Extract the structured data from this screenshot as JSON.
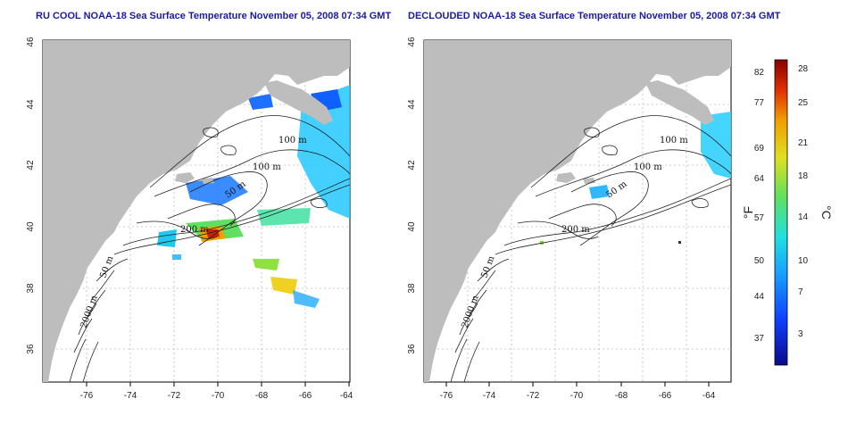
{
  "panels": [
    {
      "title": "RU COOL NOAA-18 Sea Surface Temperature November 05, 2008 07:34 GMT",
      "xticks": [
        "-76",
        "-74",
        "-72",
        "-70",
        "-68",
        "-66",
        "-64"
      ],
      "yticks": [
        "46",
        "44",
        "42",
        "40",
        "38",
        "36"
      ],
      "contours": [
        "100 m",
        "100 m",
        "50 m",
        "200 m",
        "50 m",
        "2000 m"
      ]
    },
    {
      "title": "DECLOUDED NOAA-18 Sea Surface Temperature November 05, 2008 07:34 GMT",
      "xticks": [
        "-76",
        "-74",
        "-72",
        "-70",
        "-68",
        "-66",
        "-64"
      ],
      "yticks": [
        "46",
        "44",
        "42",
        "40",
        "38",
        "36"
      ],
      "contours": [
        "100 m",
        "100 m",
        "50 m",
        "200 m",
        "50 m",
        "2000 m"
      ]
    }
  ],
  "colorbar": {
    "fahrenheit_ticks": [
      "82",
      "77",
      "69",
      "64",
      "57",
      "50",
      "44",
      "37"
    ],
    "celsius_ticks": [
      "28",
      "25",
      "21",
      "18",
      "14",
      "10",
      "7",
      "3"
    ],
    "fahrenheit_unit": "°F",
    "celsius_unit": "°C",
    "gradient": [
      "#0a0a8a",
      "#1040ff",
      "#18a0ff",
      "#20e0e0",
      "#60e060",
      "#e0e020",
      "#f0a000",
      "#e03000",
      "#8a0000"
    ]
  },
  "colors": {
    "land": "#bdbdbd",
    "ocean": "#ffffff",
    "title": "#1a1aa6"
  }
}
